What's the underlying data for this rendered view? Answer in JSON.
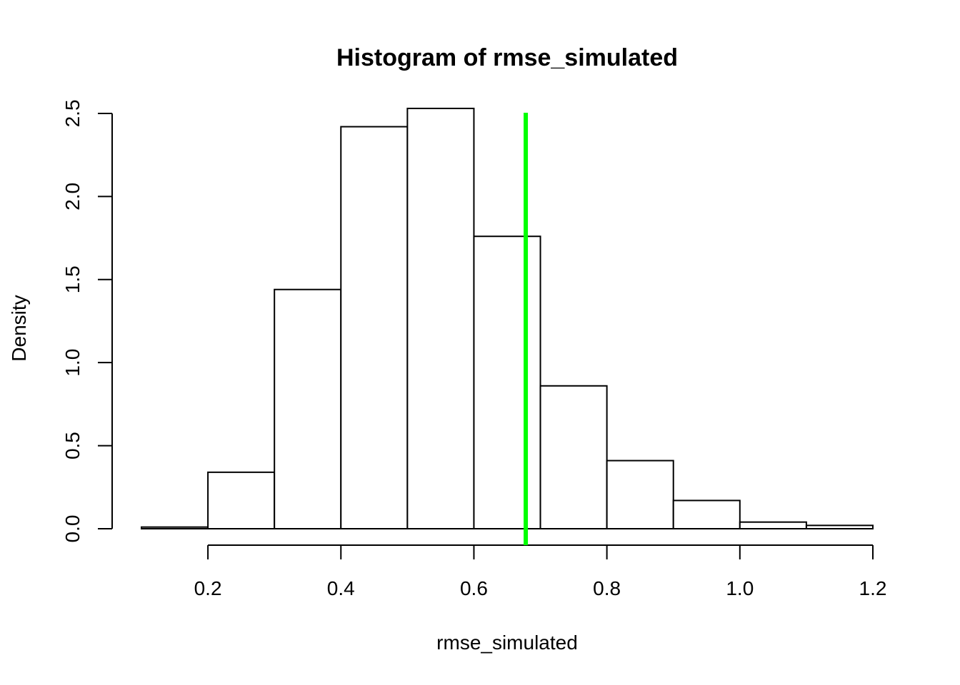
{
  "chart_data": {
    "type": "bar",
    "title": "Histogram of rmse_simulated",
    "xlabel": "rmse_simulated",
    "ylabel": "Density",
    "bins": [
      {
        "from": 0.1,
        "to": 0.2,
        "density": 0.01
      },
      {
        "from": 0.2,
        "to": 0.3,
        "density": 0.34
      },
      {
        "from": 0.3,
        "to": 0.4,
        "density": 1.44
      },
      {
        "from": 0.4,
        "to": 0.5,
        "density": 2.42
      },
      {
        "from": 0.5,
        "to": 0.6,
        "density": 2.53
      },
      {
        "from": 0.6,
        "to": 0.7,
        "density": 1.76
      },
      {
        "from": 0.7,
        "to": 0.8,
        "density": 0.86
      },
      {
        "from": 0.8,
        "to": 0.9,
        "density": 0.41
      },
      {
        "from": 0.9,
        "to": 1.0,
        "density": 0.17
      },
      {
        "from": 1.0,
        "to": 1.1,
        "density": 0.04
      },
      {
        "from": 1.1,
        "to": 1.2,
        "density": 0.02
      }
    ],
    "xlim": [
      0.1,
      1.2
    ],
    "ylim": [
      0,
      2.62
    ],
    "x_ticks": [
      0.2,
      0.4,
      0.6,
      0.8,
      1.0,
      1.2
    ],
    "x_tick_labels": [
      "0.2",
      "0.4",
      "0.6",
      "0.8",
      "1.0",
      "1.2"
    ],
    "y_ticks": [
      0.0,
      0.5,
      1.0,
      1.5,
      2.0,
      2.5
    ],
    "y_tick_labels": [
      "0.0",
      "0.5",
      "1.0",
      "1.5",
      "2.0",
      "2.5"
    ],
    "vline": {
      "x": 0.678,
      "color": "#00ff00"
    },
    "grid": false
  }
}
